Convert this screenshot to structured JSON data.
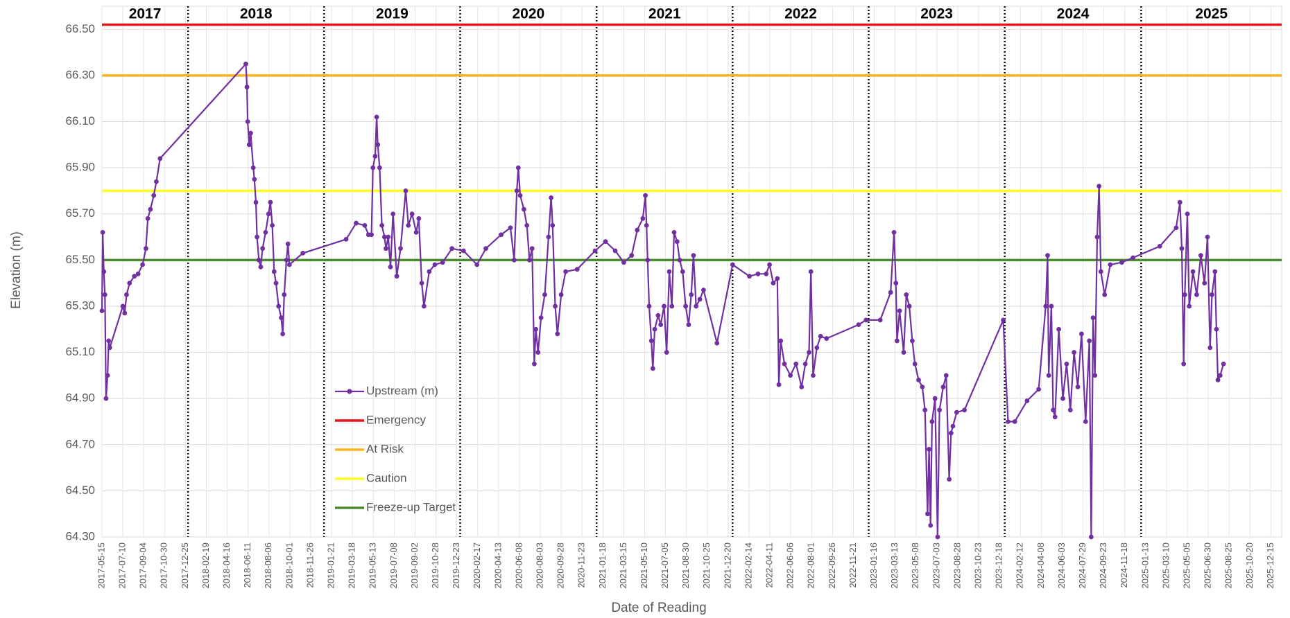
{
  "chart_data": {
    "type": "line",
    "x_label": "Date of Reading",
    "y_label": "Elevation (m)",
    "xlim": [
      "2017-05-15",
      "2026-01-13"
    ],
    "ylim": [
      64.3,
      66.6
    ],
    "yticks": [
      {
        "value": 64.3,
        "label": "64.30"
      },
      {
        "value": 64.5,
        "label": "64.50"
      },
      {
        "value": 64.7,
        "label": "64.70"
      },
      {
        "value": 64.9,
        "label": "64.90"
      },
      {
        "value": 65.1,
        "label": "65.10"
      },
      {
        "value": 65.3,
        "label": "65.30"
      },
      {
        "value": 65.5,
        "label": "65.50"
      },
      {
        "value": 65.7,
        "label": "65.70"
      },
      {
        "value": 65.9,
        "label": "65.90"
      },
      {
        "value": 66.1,
        "label": "66.10"
      },
      {
        "value": 66.3,
        "label": "66.30"
      },
      {
        "value": 66.5,
        "label": "66.50"
      }
    ],
    "xticks": [
      "2017-05-15",
      "2017-07-10",
      "2017-09-04",
      "2017-10-30",
      "2017-12-25",
      "2018-02-19",
      "2018-04-16",
      "2018-06-11",
      "2018-08-06",
      "2018-10-01",
      "2018-11-26",
      "2019-01-21",
      "2019-03-18",
      "2019-05-13",
      "2019-07-08",
      "2019-09-02",
      "2019-10-28",
      "2019-12-23",
      "2020-02-17",
      "2020-04-13",
      "2020-06-08",
      "2020-08-03",
      "2020-09-28",
      "2020-11-23",
      "2021-01-18",
      "2021-03-15",
      "2021-05-10",
      "2021-07-05",
      "2021-08-30",
      "2021-10-25",
      "2021-12-20",
      "2022-02-14",
      "2022-04-11",
      "2022-06-06",
      "2022-08-01",
      "2022-09-26",
      "2022-11-21",
      "2023-01-16",
      "2023-03-13",
      "2023-05-08",
      "2023-07-03",
      "2023-08-28",
      "2023-10-23",
      "2023-12-18",
      "2024-02-12",
      "2024-04-08",
      "2024-06-03",
      "2024-07-29",
      "2024-09-23",
      "2024-11-18",
      "2025-01-13",
      "2025-03-10",
      "2025-05-05",
      "2025-06-30",
      "2025-08-25",
      "2025-10-20",
      "2025-12-15"
    ],
    "grid": true,
    "years": [
      "2017",
      "2018",
      "2019",
      "2020",
      "2021",
      "2022",
      "2023",
      "2024",
      "2025"
    ],
    "year_dividers": [
      "2018-01-01",
      "2019-01-01",
      "2020-01-01",
      "2021-01-01",
      "2022-01-01",
      "2023-01-01",
      "2024-01-01",
      "2025-01-01"
    ],
    "reference_lines": [
      {
        "name": "Emergency",
        "color": "#e8141c",
        "value": 66.52
      },
      {
        "name": "At Risk",
        "color": "#ffb41e",
        "value": 66.3
      },
      {
        "name": "Caution",
        "color": "#ffff1e",
        "value": 65.8
      },
      {
        "name": "Freeze-up Target",
        "color": "#4a8c2e",
        "value": 65.5
      }
    ],
    "x": [
      "2017-05-15",
      "2017-05-17",
      "2017-05-20",
      "2017-05-23",
      "2017-05-26",
      "2017-05-30",
      "2017-06-02",
      "2017-06-05",
      "2017-07-10",
      "2017-07-15",
      "2017-07-20",
      "2017-07-28",
      "2017-08-10",
      "2017-08-20",
      "2017-09-01",
      "2017-09-10",
      "2017-09-15",
      "2017-09-22",
      "2017-10-01",
      "2017-10-08",
      "2017-10-18",
      "2018-06-05",
      "2018-06-08",
      "2018-06-10",
      "2018-06-14",
      "2018-06-18",
      "2018-06-25",
      "2018-06-28",
      "2018-07-02",
      "2018-07-05",
      "2018-07-10",
      "2018-07-15",
      "2018-07-20",
      "2018-07-28",
      "2018-08-05",
      "2018-08-10",
      "2018-08-15",
      "2018-08-20",
      "2018-08-25",
      "2018-09-01",
      "2018-09-08",
      "2018-09-12",
      "2018-09-16",
      "2018-09-22",
      "2018-09-26",
      "2018-09-30",
      "2018-11-05",
      "2019-03-01",
      "2019-03-28",
      "2019-04-20",
      "2019-04-30",
      "2019-05-08",
      "2019-05-12",
      "2019-05-18",
      "2019-05-22",
      "2019-05-25",
      "2019-05-30",
      "2019-06-05",
      "2019-06-12",
      "2019-06-16",
      "2019-06-22",
      "2019-06-28",
      "2019-07-05",
      "2019-07-15",
      "2019-07-25",
      "2019-08-08",
      "2019-08-15",
      "2019-08-25",
      "2019-09-05",
      "2019-09-12",
      "2019-09-20",
      "2019-09-26",
      "2019-10-10",
      "2019-10-25",
      "2019-11-15",
      "2019-12-10",
      "2020-01-10",
      "2020-02-15",
      "2020-03-10",
      "2020-04-20",
      "2020-05-15",
      "2020-05-25",
      "2020-06-01",
      "2020-06-05",
      "2020-06-10",
      "2020-06-20",
      "2020-06-28",
      "2020-07-05",
      "2020-07-12",
      "2020-07-18",
      "2020-07-22",
      "2020-07-28",
      "2020-08-05",
      "2020-08-15",
      "2020-08-25",
      "2020-09-01",
      "2020-09-05",
      "2020-09-12",
      "2020-09-18",
      "2020-09-28",
      "2020-10-10",
      "2020-11-10",
      "2020-12-28",
      "2021-01-25",
      "2021-02-20",
      "2021-03-15",
      "2021-04-05",
      "2021-04-20",
      "2021-05-05",
      "2021-05-12",
      "2021-05-15",
      "2021-05-18",
      "2021-05-22",
      "2021-05-28",
      "2021-06-01",
      "2021-06-06",
      "2021-06-15",
      "2021-06-22",
      "2021-07-01",
      "2021-07-08",
      "2021-07-15",
      "2021-07-22",
      "2021-07-28",
      "2021-08-05",
      "2021-08-12",
      "2021-08-20",
      "2021-08-28",
      "2021-09-05",
      "2021-09-12",
      "2021-09-18",
      "2021-09-25",
      "2021-10-05",
      "2021-10-15",
      "2021-11-20",
      "2022-01-01",
      "2022-02-15",
      "2022-03-10",
      "2022-04-01",
      "2022-04-10",
      "2022-04-20",
      "2022-05-01",
      "2022-05-05",
      "2022-05-10",
      "2022-05-20",
      "2022-06-05",
      "2022-06-20",
      "2022-07-05",
      "2022-07-15",
      "2022-07-25",
      "2022-07-30",
      "2022-08-05",
      "2022-08-15",
      "2022-08-25",
      "2022-09-10",
      "2022-12-05",
      "2022-12-25",
      "2023-02-01",
      "2023-03-01",
      "2023-03-10",
      "2023-03-15",
      "2023-03-18",
      "2023-03-25",
      "2023-04-05",
      "2023-04-12",
      "2023-04-20",
      "2023-04-28",
      "2023-05-05",
      "2023-05-15",
      "2023-05-25",
      "2023-06-01",
      "2023-06-08",
      "2023-06-12",
      "2023-06-16",
      "2023-06-20",
      "2023-06-28",
      "2023-07-05",
      "2023-07-10",
      "2023-07-20",
      "2023-07-28",
      "2023-08-05",
      "2023-08-10",
      "2023-08-15",
      "2023-08-25",
      "2023-09-15",
      "2023-12-28",
      "2024-01-10",
      "2024-01-28",
      "2024-03-01",
      "2024-04-01",
      "2024-04-20",
      "2024-04-25",
      "2024-04-28",
      "2024-05-05",
      "2024-05-10",
      "2024-05-15",
      "2024-05-25",
      "2024-06-05",
      "2024-06-15",
      "2024-06-25",
      "2024-07-05",
      "2024-07-15",
      "2024-07-25",
      "2024-08-05",
      "2024-08-15",
      "2024-08-20",
      "2024-08-25",
      "2024-08-30",
      "2024-09-05",
      "2024-09-10",
      "2024-09-15",
      "2024-09-25",
      "2024-10-10",
      "2024-11-10",
      "2024-12-10",
      "2025-02-20",
      "2025-04-05",
      "2025-04-15",
      "2025-04-20",
      "2025-04-25",
      "2025-04-28",
      "2025-05-05",
      "2025-05-10",
      "2025-05-20",
      "2025-05-30",
      "2025-06-10",
      "2025-06-20",
      "2025-06-28",
      "2025-07-05",
      "2025-07-10",
      "2025-07-18",
      "2025-07-22",
      "2025-07-26",
      "2025-08-01",
      "2025-08-10"
    ],
    "series": [
      {
        "name": "Upstream  (m)",
        "color": "#7030a0",
        "values": [
          65.28,
          65.62,
          65.45,
          65.35,
          64.9,
          65.0,
          65.15,
          65.12,
          65.3,
          65.27,
          65.35,
          65.4,
          65.43,
          65.44,
          65.48,
          65.55,
          65.68,
          65.72,
          65.78,
          65.84,
          65.94,
          66.35,
          66.25,
          66.1,
          66.0,
          66.05,
          65.9,
          65.85,
          65.75,
          65.6,
          65.5,
          65.47,
          65.55,
          65.62,
          65.7,
          65.75,
          65.65,
          65.45,
          65.4,
          65.3,
          65.25,
          65.18,
          65.35,
          65.5,
          65.57,
          65.48,
          65.53,
          65.59,
          65.66,
          65.65,
          65.61,
          65.61,
          65.9,
          65.95,
          66.12,
          66.0,
          65.9,
          65.65,
          65.6,
          65.55,
          65.6,
          65.47,
          65.7,
          65.43,
          65.55,
          65.8,
          65.65,
          65.7,
          65.62,
          65.68,
          65.4,
          65.3,
          65.45,
          65.48,
          65.49,
          65.55,
          65.54,
          65.48,
          65.55,
          65.61,
          65.64,
          65.5,
          65.8,
          65.9,
          65.78,
          65.72,
          65.65,
          65.5,
          65.55,
          65.05,
          65.2,
          65.1,
          65.25,
          65.35,
          65.6,
          65.77,
          65.65,
          65.3,
          65.18,
          65.35,
          65.45,
          65.46,
          65.54,
          65.58,
          65.54,
          65.49,
          65.52,
          65.63,
          65.68,
          65.78,
          65.65,
          65.5,
          65.3,
          65.15,
          65.03,
          65.2,
          65.26,
          65.22,
          65.3,
          65.1,
          65.45,
          65.3,
          65.62,
          65.58,
          65.5,
          65.45,
          65.3,
          65.22,
          65.35,
          65.52,
          65.3,
          65.33,
          65.37,
          65.14,
          65.48,
          65.43,
          65.44,
          65.44,
          65.48,
          65.4,
          65.42,
          64.96,
          65.15,
          65.05,
          65.0,
          65.05,
          64.95,
          65.05,
          65.1,
          65.45,
          65.0,
          65.12,
          65.17,
          65.16,
          65.22,
          65.24,
          65.24,
          65.36,
          65.62,
          65.4,
          65.15,
          65.28,
          65.1,
          65.35,
          65.3,
          65.15,
          65.05,
          64.98,
          64.95,
          64.85,
          64.4,
          64.68,
          64.35,
          64.8,
          64.9,
          64.3,
          64.85,
          64.95,
          65.0,
          64.55,
          64.75,
          64.78,
          64.84,
          64.85,
          65.24,
          64.8,
          64.8,
          64.89,
          64.94,
          65.3,
          65.52,
          65.0,
          65.3,
          64.85,
          64.82,
          65.2,
          64.9,
          65.05,
          64.85,
          65.1,
          64.95,
          65.18,
          64.8,
          65.15,
          64.3,
          65.25,
          65.0,
          65.6,
          65.82,
          65.45,
          65.35,
          65.48,
          65.49,
          65.51,
          65.56,
          65.64,
          65.75,
          65.55,
          65.05,
          65.35,
          65.7,
          65.3,
          65.45,
          65.35,
          65.52,
          65.4,
          65.6,
          65.12,
          65.35,
          65.45,
          65.2,
          64.98,
          65.0,
          65.05
        ]
      }
    ]
  }
}
